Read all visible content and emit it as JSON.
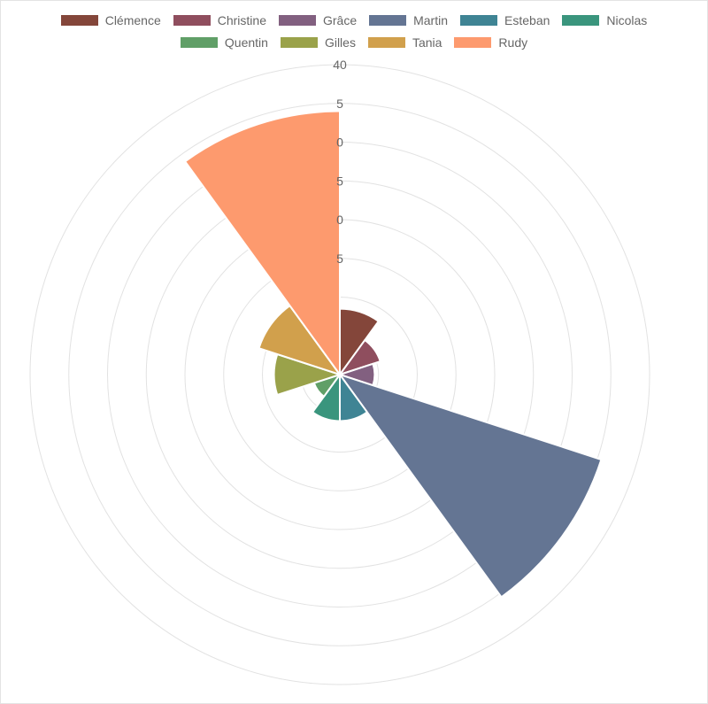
{
  "chart_data": {
    "type": "polarArea",
    "categories": [
      "Clémence",
      "Christine",
      "Grâce",
      "Martin",
      "Esteban",
      "Nicolas",
      "Quentin",
      "Gilles",
      "Tania",
      "Rudy"
    ],
    "values": [
      8.5,
      5.5,
      4.5,
      35.5,
      6,
      6,
      3.5,
      8.5,
      11,
      34
    ],
    "colors": [
      "#84463a",
      "#8f4e5e",
      "#826080",
      "#647593",
      "#3f8494",
      "#3a957d",
      "#609f67",
      "#9aa24a",
      "#d1a04c",
      "#fd9a6e"
    ],
    "rlim": [
      0,
      40
    ],
    "ticks": [
      "40",
      "5",
      "0",
      "5",
      "0",
      "5"
    ],
    "legend_position": "top",
    "grid": true
  }
}
